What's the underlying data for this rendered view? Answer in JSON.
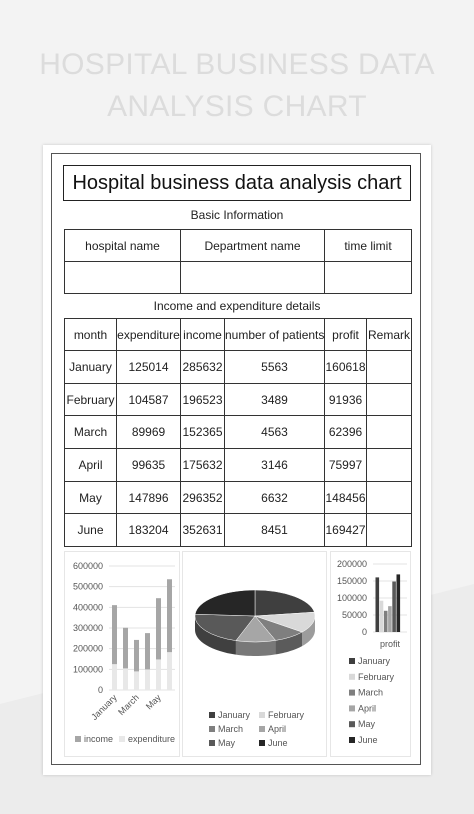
{
  "banner": {
    "line1": "HOSPITAL BUSINESS DATA",
    "line2": "ANALYSIS CHART"
  },
  "document": {
    "title": "Hospital business data analysis chart",
    "basic_info_label": "Basic Information",
    "basic_headers": [
      "hospital name",
      "Department name",
      "time limit"
    ],
    "basic_values": [
      "",
      "",
      ""
    ],
    "details_label": "Income and expenditure details",
    "details_headers": [
      "month",
      "expenditure",
      "income",
      "number of patients",
      "profit",
      "Remark"
    ],
    "rows": [
      [
        "January",
        "125014",
        "285632",
        "5563",
        "160618",
        ""
      ],
      [
        "February",
        "104587",
        "196523",
        "3489",
        "91936",
        ""
      ],
      [
        "March",
        "89969",
        "152365",
        "4563",
        "62396",
        ""
      ],
      [
        "April",
        "99635",
        "175632",
        "3146",
        "75997",
        ""
      ],
      [
        "May",
        "147896",
        "296352",
        "6632",
        "148456",
        ""
      ],
      [
        "June",
        "183204",
        "352631",
        "8451",
        "169427",
        ""
      ]
    ]
  },
  "colors": {
    "income": "#a6a6a6",
    "expenditure": "#e8e8e8",
    "months": [
      "#3f3f3f",
      "#d9d9d9",
      "#7f7f7f",
      "#a6a6a6",
      "#595959",
      "#262626"
    ]
  },
  "chart_data": [
    {
      "type": "bar",
      "stacked": true,
      "categories": [
        "January",
        "February",
        "March",
        "April",
        "May",
        "June"
      ],
      "tick_labels": [
        "January",
        "March",
        "May"
      ],
      "series": [
        {
          "name": "income",
          "values": [
            285632,
            196523,
            152365,
            175632,
            296352,
            352631
          ]
        },
        {
          "name": "expenditure",
          "values": [
            125014,
            104587,
            89969,
            99635,
            147896,
            183204
          ]
        }
      ],
      "yticks": [
        "0",
        "100000",
        "200000",
        "300000",
        "400000",
        "500000",
        "600000"
      ],
      "ylim": [
        0,
        600000
      ],
      "legend_position": "bottom",
      "grid": true
    },
    {
      "type": "pie",
      "style": "3d",
      "labels": [
        "January",
        "February",
        "March",
        "April",
        "May",
        "June"
      ],
      "values": [
        160618,
        91936,
        62396,
        75997,
        148456,
        169427
      ],
      "legend_position": "bottom"
    },
    {
      "type": "bar",
      "category_label": "profit",
      "series": [
        {
          "name": "January",
          "value": 160618
        },
        {
          "name": "February",
          "value": 91936
        },
        {
          "name": "March",
          "value": 62396
        },
        {
          "name": "April",
          "value": 75997
        },
        {
          "name": "May",
          "value": 148456
        },
        {
          "name": "June",
          "value": 169427
        }
      ],
      "yticks": [
        "0",
        "50000",
        "100000",
        "150000",
        "200000"
      ],
      "ylim": [
        0,
        200000
      ],
      "legend_position": "bottom",
      "grid": true
    }
  ]
}
